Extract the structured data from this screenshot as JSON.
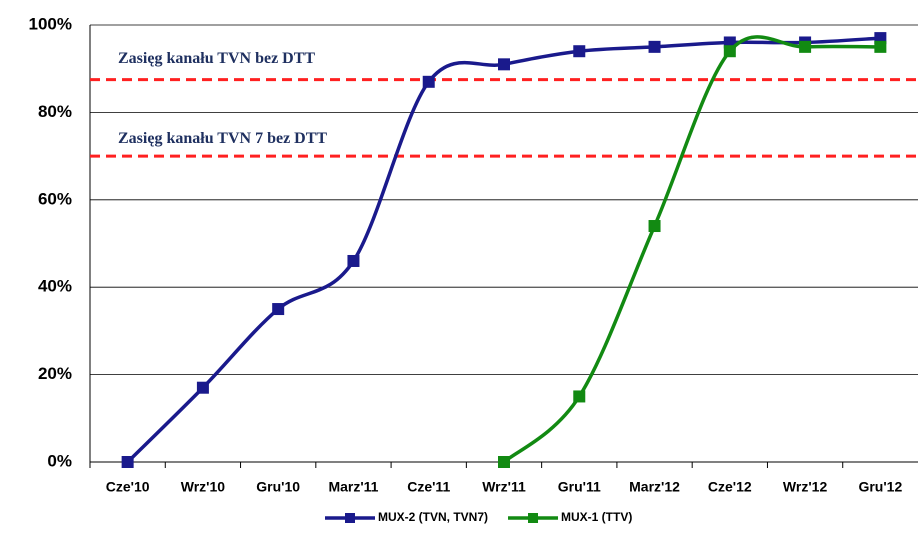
{
  "chart_data": {
    "type": "line",
    "categories": [
      "Cze'10",
      "Wrz'10",
      "Gru'10",
      "Marz'11",
      "Cze'11",
      "Wrz'11",
      "Gru'11",
      "Marz'12",
      "Cze'12",
      "Wrz'12",
      "Gru'12"
    ],
    "series": [
      {
        "name": "MUX-2 (TVN, TVN7)",
        "color": "#1a1a8c",
        "values": [
          0,
          17,
          35,
          46,
          87,
          91,
          94,
          95,
          96,
          96,
          97
        ]
      },
      {
        "name": "MUX-1 (TTV)",
        "color": "#128a12",
        "values": [
          null,
          null,
          null,
          null,
          null,
          0,
          15,
          54,
          94,
          95,
          95
        ]
      }
    ],
    "ylim": [
      0,
      100
    ],
    "yticks": [
      {
        "value": 0,
        "label": "0%"
      },
      {
        "value": 20,
        "label": "20%"
      },
      {
        "value": 40,
        "label": "40%"
      },
      {
        "value": 60,
        "label": "60%"
      },
      {
        "value": 80,
        "label": "80%"
      },
      {
        "value": 100,
        "label": "100%"
      }
    ],
    "grid": true,
    "smooth": true,
    "reference_lines": [
      {
        "value": 87.5,
        "label": "Zasięg kanału TVN bez DTT",
        "color": "#ff2020"
      },
      {
        "value": 70,
        "label": "Zasięg kanału TVN 7 bez DTT",
        "color": "#ff2020"
      }
    ],
    "legend": "bottom"
  }
}
